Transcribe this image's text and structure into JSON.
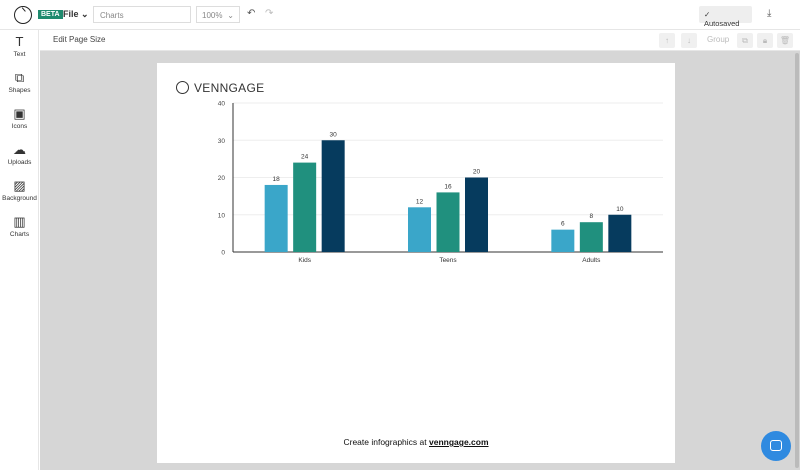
{
  "toolbar": {
    "beta": "BETA",
    "file": "File",
    "title_value": "Charts",
    "zoom": "100%",
    "autosaved": "Autosaved"
  },
  "sidebar": {
    "items": [
      {
        "label": "Text",
        "icon": "T"
      },
      {
        "label": "Shapes",
        "icon": "⧉"
      },
      {
        "label": "Icons",
        "icon": "▣"
      },
      {
        "label": "Uploads",
        "icon": "☁"
      },
      {
        "label": "Background",
        "icon": "▨"
      },
      {
        "label": "Charts",
        "icon": "▥"
      }
    ]
  },
  "subbar": {
    "edit_page_size": "Edit Page Size",
    "group": "Group"
  },
  "page": {
    "brand": "VENNGAGE",
    "footer_text": "Create infographics at ",
    "footer_link": "venngage.com"
  },
  "chart_data": {
    "type": "bar",
    "categories": [
      "Kids",
      "Teens",
      "Adults"
    ],
    "series": [
      {
        "values": [
          18,
          12,
          6
        ],
        "color": "#3aa6c9"
      },
      {
        "values": [
          24,
          16,
          8
        ],
        "color": "#20907e"
      },
      {
        "values": [
          30,
          20,
          10
        ],
        "color": "#063b5e"
      }
    ],
    "ylim": [
      0,
      40
    ],
    "yticks": [
      0,
      10,
      20,
      30,
      40
    ],
    "grid": true
  }
}
